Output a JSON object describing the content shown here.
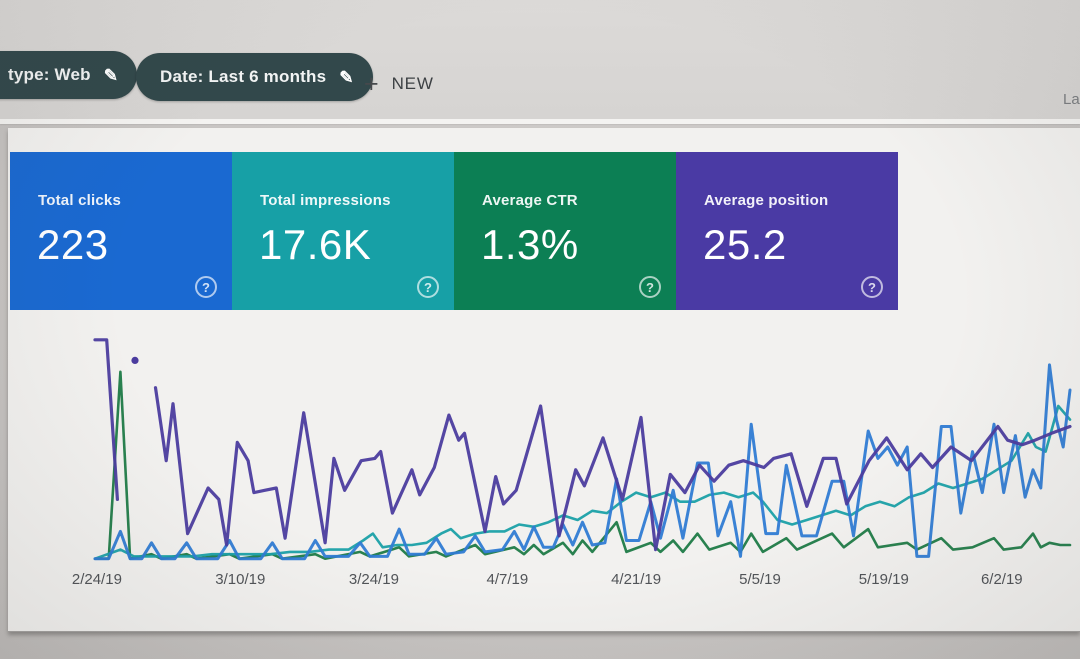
{
  "topbar": {
    "chips": [
      {
        "label": "type: Web",
        "truncated_left": true
      },
      {
        "label": "Date: Last 6 months",
        "truncated_left": false
      }
    ],
    "new_button": {
      "label": "NEW"
    },
    "right_text_truncated": "La"
  },
  "icons": {
    "edit": "✎",
    "plus": "+",
    "help": "?"
  },
  "metric_cards": [
    {
      "label": "Total clicks",
      "value": "223",
      "color": "#1a69d1"
    },
    {
      "label": "Total impressions",
      "value": "17.6K",
      "color": "#17a0a6"
    },
    {
      "label": "Average CTR",
      "value": "1.3%",
      "color": "#0c7f54"
    },
    {
      "label": "Average position",
      "value": "25.2",
      "color": "#4a3aa4"
    }
  ],
  "chart_data": {
    "type": "line",
    "title": "",
    "xlabel": "",
    "ylabel": "",
    "grid": false,
    "legend": "none (series colors match metric cards above)",
    "x_axis": {
      "tick_labels": [
        "2/24/19",
        "3/10/19",
        "3/24/19",
        "4/7/19",
        "4/21/19",
        "5/5/19",
        "5/19/19",
        "6/2/19"
      ],
      "tick_x_pct": [
        0.2,
        14.9,
        28.6,
        42.3,
        55.5,
        68.2,
        80.9,
        93.0
      ],
      "range_note": "daily points, ~2/22/19 through ~6/8/19"
    },
    "y_axis": {
      "units": "percent of plot height above baseline (each metric auto-scaled, no visible axis)",
      "range": [
        0,
        100
      ]
    },
    "series": [
      {
        "name": "ctr",
        "label": "Average CTR",
        "color": "#1d7a46",
        "stroke_width": 2.6,
        "points": [
          [
            0,
            1
          ],
          [
            1.4,
            1
          ],
          [
            2.6,
            83
          ],
          [
            3.6,
            1
          ],
          [
            5.8,
            3
          ],
          [
            6.8,
            1
          ],
          [
            9.4,
            3
          ],
          [
            10.4,
            1
          ],
          [
            13.8,
            3
          ],
          [
            14.8,
            1
          ],
          [
            18.2,
            3
          ],
          [
            19.2,
            1
          ],
          [
            22.6,
            3
          ],
          [
            23.6,
            1
          ],
          [
            27.2,
            4
          ],
          [
            28.2,
            2
          ],
          [
            31.2,
            6
          ],
          [
            32.2,
            2
          ],
          [
            35,
            4
          ],
          [
            36,
            2
          ],
          [
            39,
            7
          ],
          [
            40,
            3
          ],
          [
            43,
            6
          ],
          [
            44,
            3
          ],
          [
            45,
            7
          ],
          [
            46,
            3
          ],
          [
            48,
            8
          ],
          [
            49,
            3
          ],
          [
            50,
            9
          ],
          [
            51,
            4
          ],
          [
            53.5,
            17
          ],
          [
            54.5,
            4
          ],
          [
            57,
            8
          ],
          [
            58,
            4
          ],
          [
            59.3,
            9
          ],
          [
            60.3,
            4
          ],
          [
            61.8,
            12
          ],
          [
            63,
            5
          ],
          [
            65.2,
            8
          ],
          [
            66.2,
            4
          ],
          [
            67.3,
            12
          ],
          [
            68.5,
            4
          ],
          [
            70.9,
            10
          ],
          [
            72,
            5
          ],
          [
            75.6,
            12
          ],
          [
            76.8,
            6
          ],
          [
            79.3,
            14
          ],
          [
            80.3,
            6
          ],
          [
            83.3,
            8
          ],
          [
            84.3,
            5
          ],
          [
            86.8,
            10
          ],
          [
            88,
            5
          ],
          [
            90,
            6
          ],
          [
            92.2,
            10
          ],
          [
            93.2,
            5
          ],
          [
            95,
            6
          ],
          [
            96.2,
            12
          ],
          [
            97,
            6
          ],
          [
            97.9,
            8
          ],
          [
            99,
            7
          ],
          [
            100,
            7
          ]
        ]
      },
      {
        "name": "impressions",
        "label": "Total impressions",
        "color": "#1aa0a6",
        "stroke_width": 2.6,
        "points": [
          [
            0,
            1
          ],
          [
            2.6,
            5
          ],
          [
            4,
            2
          ],
          [
            6,
            2
          ],
          [
            8,
            2
          ],
          [
            10,
            2
          ],
          [
            12,
            3
          ],
          [
            14,
            3
          ],
          [
            16,
            3
          ],
          [
            18,
            3
          ],
          [
            20,
            4
          ],
          [
            22,
            4
          ],
          [
            24,
            5
          ],
          [
            26,
            5
          ],
          [
            27.5,
            9
          ],
          [
            28.5,
            12
          ],
          [
            29.5,
            6
          ],
          [
            31,
            7
          ],
          [
            32.5,
            7
          ],
          [
            34,
            8
          ],
          [
            35.5,
            12
          ],
          [
            36.5,
            14
          ],
          [
            37.5,
            10
          ],
          [
            39,
            12
          ],
          [
            40.5,
            13
          ],
          [
            42,
            13
          ],
          [
            43.5,
            16
          ],
          [
            45,
            15
          ],
          [
            46.5,
            17
          ],
          [
            48,
            20
          ],
          [
            49.5,
            18
          ],
          [
            51,
            22
          ],
          [
            52.5,
            21
          ],
          [
            54,
            26
          ],
          [
            55.5,
            30
          ],
          [
            57,
            28
          ],
          [
            58.5,
            30
          ],
          [
            60,
            26
          ],
          [
            61.5,
            26
          ],
          [
            63,
            29
          ],
          [
            64.5,
            30
          ],
          [
            66,
            28
          ],
          [
            67.5,
            30
          ],
          [
            68.5,
            26
          ],
          [
            70,
            18
          ],
          [
            71.5,
            16
          ],
          [
            73,
            18
          ],
          [
            74.5,
            20
          ],
          [
            76,
            22
          ],
          [
            77.5,
            20
          ],
          [
            79,
            24
          ],
          [
            80.5,
            26
          ],
          [
            82,
            24
          ],
          [
            83.5,
            28
          ],
          [
            85,
            30
          ],
          [
            86.5,
            34
          ],
          [
            88,
            32
          ],
          [
            89.5,
            34
          ],
          [
            91,
            36
          ],
          [
            92.5,
            40
          ],
          [
            94,
            44
          ],
          [
            95.7,
            56
          ],
          [
            96.5,
            50
          ],
          [
            97.5,
            48
          ],
          [
            98.8,
            68
          ],
          [
            100,
            62
          ]
        ]
      },
      {
        "name": "clicks",
        "label": "Total clicks",
        "color": "#2f7bd3",
        "stroke_width": 3,
        "points": [
          [
            0,
            1
          ],
          [
            1.4,
            1
          ],
          [
            2.6,
            13
          ],
          [
            3.6,
            1
          ],
          [
            4.8,
            1
          ],
          [
            5.8,
            8
          ],
          [
            6.8,
            1
          ],
          [
            8.2,
            1
          ],
          [
            9.4,
            8
          ],
          [
            10.4,
            1
          ],
          [
            12.6,
            1
          ],
          [
            13.8,
            9
          ],
          [
            14.8,
            1
          ],
          [
            17,
            1
          ],
          [
            18.2,
            8
          ],
          [
            19.2,
            1
          ],
          [
            21.5,
            1
          ],
          [
            22.6,
            9
          ],
          [
            23.6,
            2
          ],
          [
            26,
            2
          ],
          [
            27.2,
            8
          ],
          [
            28.2,
            2
          ],
          [
            30,
            2
          ],
          [
            31.2,
            14
          ],
          [
            32.2,
            3
          ],
          [
            33.8,
            3
          ],
          [
            35,
            10
          ],
          [
            36,
            3
          ],
          [
            37.8,
            4
          ],
          [
            39,
            11
          ],
          [
            40,
            4
          ],
          [
            41.8,
            5
          ],
          [
            43,
            13
          ],
          [
            44,
            5
          ],
          [
            45,
            15
          ],
          [
            46,
            6
          ],
          [
            47,
            6
          ],
          [
            48,
            16
          ],
          [
            49,
            7
          ],
          [
            50,
            17
          ],
          [
            51,
            7
          ],
          [
            52.3,
            8
          ],
          [
            53.5,
            36
          ],
          [
            54.5,
            9
          ],
          [
            55.8,
            9
          ],
          [
            57,
            26
          ],
          [
            58,
            10
          ],
          [
            59.3,
            31
          ],
          [
            60.3,
            10
          ],
          [
            61.8,
            43
          ],
          [
            62.9,
            43
          ],
          [
            63.9,
            11
          ],
          [
            65.2,
            26
          ],
          [
            66.2,
            2
          ],
          [
            67.3,
            60
          ],
          [
            68.8,
            12
          ],
          [
            70,
            12
          ],
          [
            70.9,
            42
          ],
          [
            72.5,
            11
          ],
          [
            74,
            11
          ],
          [
            75.6,
            35
          ],
          [
            76.8,
            35
          ],
          [
            77.8,
            11
          ],
          [
            79.3,
            57
          ],
          [
            80.3,
            45
          ],
          [
            81.3,
            50
          ],
          [
            82.3,
            42
          ],
          [
            83.3,
            50
          ],
          [
            84.3,
            2
          ],
          [
            85.5,
            2
          ],
          [
            86.8,
            59
          ],
          [
            87.8,
            59
          ],
          [
            88.8,
            21
          ],
          [
            90,
            48
          ],
          [
            91,
            30
          ],
          [
            92.2,
            60
          ],
          [
            93.2,
            30
          ],
          [
            94.4,
            55
          ],
          [
            95.4,
            28
          ],
          [
            96.2,
            40
          ],
          [
            97,
            32
          ],
          [
            97.9,
            86
          ],
          [
            98.6,
            62
          ],
          [
            99.3,
            50
          ],
          [
            100,
            75
          ]
        ]
      },
      {
        "name": "position",
        "label": "Average position",
        "color": "#4b3c9e",
        "stroke_width": 3.2,
        "points": [
          [
            0,
            97
          ],
          [
            1.2,
            97
          ],
          [
            2.3,
            27
          ],
          null,
          [
            4.1,
            88
          ],
          null,
          [
            6.2,
            76
          ],
          [
            7.3,
            44
          ],
          [
            8,
            69
          ],
          [
            9.5,
            12
          ],
          [
            11.6,
            32
          ],
          [
            12.7,
            27
          ],
          [
            13.5,
            7
          ],
          [
            14.6,
            52
          ],
          [
            15.7,
            44
          ],
          [
            16.3,
            30
          ],
          [
            17.4,
            31
          ],
          [
            18.6,
            32
          ],
          [
            19.5,
            10
          ],
          [
            21.4,
            65
          ],
          [
            23.6,
            8
          ],
          [
            24.5,
            45
          ],
          [
            25.6,
            31
          ],
          [
            27.3,
            44
          ],
          [
            28.7,
            45
          ],
          [
            29.3,
            48
          ],
          [
            30.5,
            21
          ],
          [
            32.5,
            40
          ],
          [
            33.3,
            29
          ],
          [
            34.8,
            41
          ],
          [
            36.3,
            64
          ],
          [
            37.3,
            53
          ],
          [
            37.9,
            56
          ],
          [
            40,
            13
          ],
          [
            41.1,
            37
          ],
          [
            41.9,
            25
          ],
          [
            43.2,
            31
          ],
          [
            45.7,
            68
          ],
          [
            47.6,
            11
          ],
          [
            49.3,
            40
          ],
          [
            50.2,
            33
          ],
          [
            52.1,
            54
          ],
          [
            54.1,
            27
          ],
          [
            56,
            63
          ],
          [
            57.5,
            5
          ],
          [
            59,
            38
          ],
          [
            60.5,
            30
          ],
          [
            62,
            42
          ],
          [
            63.5,
            35
          ],
          [
            65,
            42
          ],
          [
            66.5,
            44
          ],
          [
            68.6,
            41
          ],
          [
            69.6,
            45
          ],
          [
            71.4,
            47
          ],
          [
            73,
            24
          ],
          [
            74.7,
            45
          ],
          [
            76,
            45
          ],
          [
            77.1,
            25
          ],
          [
            79.4,
            44
          ],
          [
            81.2,
            54
          ],
          [
            83.3,
            40
          ],
          [
            84.7,
            47
          ],
          [
            85.9,
            41
          ],
          [
            87.8,
            50
          ],
          [
            89.9,
            44
          ],
          [
            92.6,
            59
          ],
          [
            93.6,
            53
          ],
          [
            95.1,
            51
          ],
          [
            96.4,
            53
          ],
          [
            98.1,
            56
          ],
          [
            100,
            59
          ]
        ]
      }
    ]
  }
}
